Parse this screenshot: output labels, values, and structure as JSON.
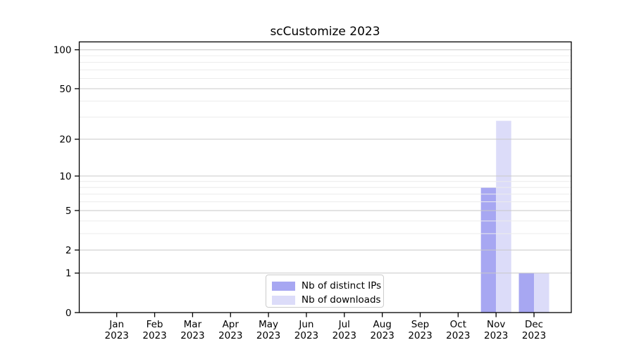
{
  "chart_data": {
    "type": "bar",
    "title": "scCustomize 2023",
    "categories": [
      "Jan 2023",
      "Feb 2023",
      "Mar 2023",
      "Apr 2023",
      "May 2023",
      "Jun 2023",
      "Jul 2023",
      "Aug 2023",
      "Sep 2023",
      "Oct 2023",
      "Nov 2023",
      "Dec 2023"
    ],
    "series": [
      {
        "name": "Nb of distinct IPs",
        "key": "distinct-ips",
        "color": "#a7a7f2",
        "values": [
          0,
          0,
          0,
          0,
          0,
          0,
          0,
          0,
          0,
          0,
          8,
          1
        ]
      },
      {
        "name": "Nb of downloads",
        "key": "downloads",
        "color": "#dcdcf9",
        "values": [
          0,
          0,
          0,
          0,
          0,
          0,
          0,
          0,
          0,
          0,
          28,
          1
        ]
      }
    ],
    "xlabel": "",
    "ylabel": "",
    "y_axis": {
      "scale": "log10(1+value)",
      "ticks": [
        0,
        1,
        2,
        5,
        10,
        20,
        50,
        100
      ],
      "tick_labels": [
        "0",
        "1",
        "2",
        "5",
        "10",
        "20",
        "50",
        "100"
      ],
      "minor_gridlines": [
        3,
        4,
        6,
        7,
        8,
        9,
        30,
        40,
        60,
        70,
        80,
        90
      ],
      "ylim": [
        0,
        115
      ]
    },
    "grid": "on",
    "legend": {
      "position": "lower center"
    }
  },
  "colors": {
    "background": "#ffffff",
    "major_gridline": "#c8c8c8",
    "minor_gridline": "#ececec",
    "spine": "#000000",
    "text": "#000000",
    "legend_border": "#cccccc"
  }
}
